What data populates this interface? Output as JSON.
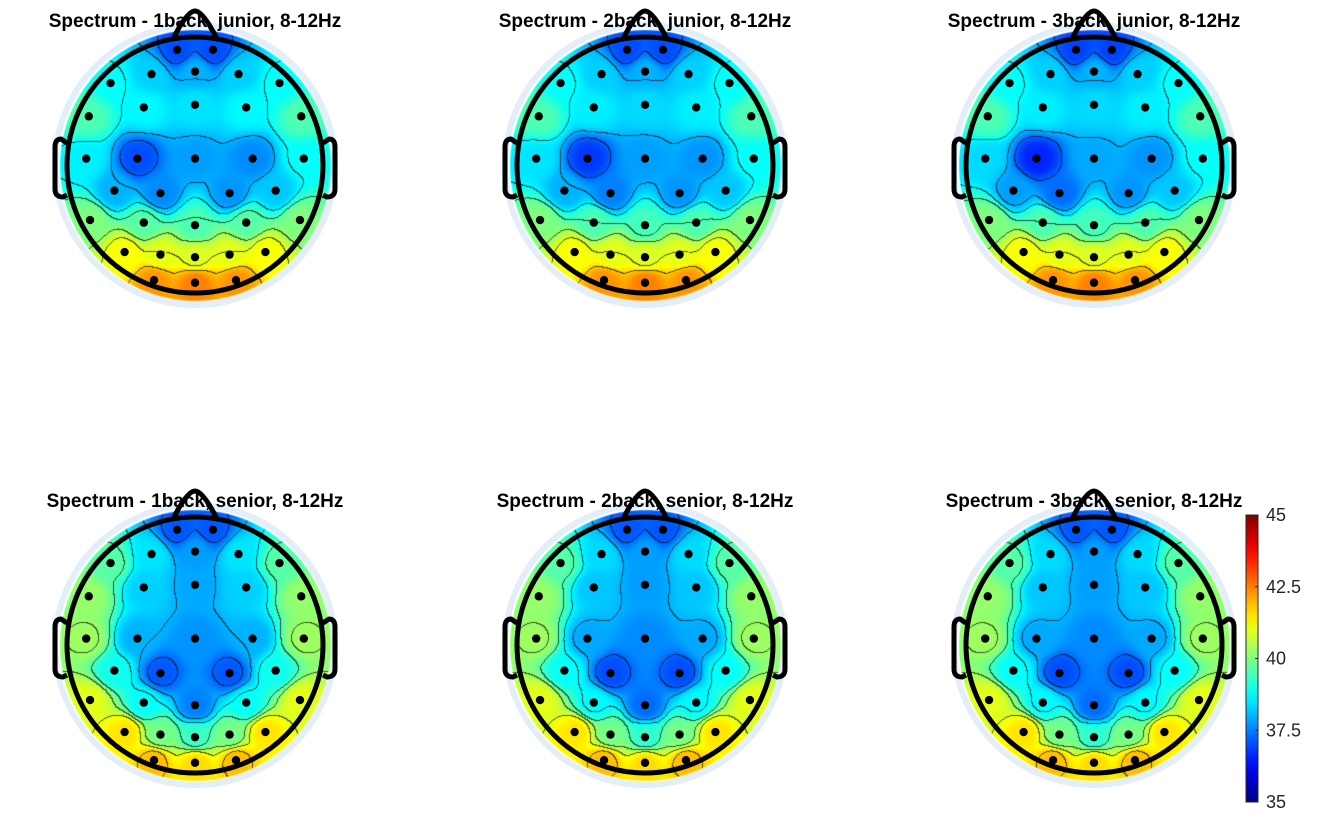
{
  "chart_data": {
    "type": "heatmap",
    "subtype": "eeg-topoplot",
    "colormap": "jet",
    "clim": [
      35,
      45
    ],
    "colorbar": {
      "ticks": [
        35,
        37.5,
        40,
        42.5,
        45
      ],
      "labels": [
        "35",
        "37.5",
        "40",
        "42.5",
        "45"
      ],
      "placement": "right"
    },
    "electrodes": [
      [
        -0.14,
        -0.9
      ],
      [
        0.14,
        -0.9
      ],
      [
        -0.66,
        -0.64
      ],
      [
        -0.34,
        -0.71
      ],
      [
        0,
        -0.73
      ],
      [
        0.34,
        -0.71
      ],
      [
        0.66,
        -0.64
      ],
      [
        -0.83,
        -0.38
      ],
      [
        -0.4,
        -0.45
      ],
      [
        0,
        -0.47
      ],
      [
        0.4,
        -0.45
      ],
      [
        0.83,
        -0.38
      ],
      [
        -0.85,
        -0.05
      ],
      [
        -0.45,
        -0.05
      ],
      [
        0,
        -0.05
      ],
      [
        0.45,
        -0.05
      ],
      [
        0.85,
        -0.05
      ],
      [
        -0.63,
        0.2
      ],
      [
        -0.27,
        0.22
      ],
      [
        0.27,
        0.22
      ],
      [
        0.63,
        0.2
      ],
      [
        -0.82,
        0.43
      ],
      [
        -0.4,
        0.45
      ],
      [
        0,
        0.47
      ],
      [
        0.4,
        0.45
      ],
      [
        0.82,
        0.43
      ],
      [
        -0.55,
        0.68
      ],
      [
        -0.27,
        0.7
      ],
      [
        0,
        0.72
      ],
      [
        0.27,
        0.7
      ],
      [
        0.55,
        0.68
      ],
      [
        -0.32,
        0.9
      ],
      [
        0,
        0.92
      ],
      [
        0.32,
        0.9
      ]
    ],
    "panels": [
      {
        "title": "Spectrum - 1back, junior, 8-12Hz",
        "values": [
          37.0,
          37.0,
          38.8,
          38.3,
          38.0,
          38.3,
          38.8,
          39.5,
          38.7,
          38.5,
          38.7,
          39.5,
          38.6,
          37.0,
          37.8,
          37.6,
          38.8,
          38.0,
          37.6,
          37.7,
          38.2,
          40.0,
          39.6,
          39.5,
          39.6,
          40.0,
          41.2,
          41.0,
          40.9,
          41.0,
          41.2,
          42.3,
          42.5,
          42.3
        ]
      },
      {
        "title": "Spectrum - 2back, junior, 8-12Hz",
        "values": [
          37.0,
          37.0,
          38.8,
          38.3,
          38.0,
          38.3,
          38.8,
          39.5,
          38.6,
          38.4,
          38.6,
          39.5,
          38.5,
          36.8,
          37.8,
          37.7,
          38.8,
          38.0,
          37.5,
          37.7,
          38.2,
          40.0,
          39.5,
          39.4,
          39.5,
          40.0,
          41.2,
          41.0,
          40.9,
          41.0,
          41.2,
          42.3,
          42.5,
          42.3
        ]
      },
      {
        "title": "Spectrum - 3back, junior, 8-12Hz",
        "values": [
          36.9,
          36.9,
          38.8,
          38.3,
          38.0,
          38.3,
          38.8,
          39.5,
          38.6,
          38.4,
          38.6,
          39.5,
          38.4,
          36.6,
          37.9,
          37.7,
          38.8,
          37.8,
          37.3,
          37.7,
          38.2,
          40.0,
          39.5,
          39.4,
          39.5,
          40.0,
          41.2,
          41.0,
          40.9,
          41.0,
          41.2,
          42.3,
          42.5,
          42.3
        ]
      },
      {
        "title": "Spectrum - 1back, senior, 8-12Hz",
        "values": [
          37.1,
          37.1,
          39.6,
          38.5,
          37.8,
          38.5,
          39.6,
          40.2,
          38.3,
          37.9,
          38.3,
          40.2,
          40.3,
          38.0,
          37.7,
          38.0,
          40.3,
          38.9,
          37.1,
          37.1,
          38.9,
          41.0,
          38.8,
          37.5,
          38.8,
          41.0,
          41.5,
          39.9,
          39.3,
          39.9,
          41.5,
          41.9,
          41.6,
          41.9
        ]
      },
      {
        "title": "Spectrum - 2back, senior, 8-12Hz",
        "values": [
          37.1,
          37.1,
          39.6,
          38.4,
          37.8,
          38.4,
          39.6,
          40.2,
          38.2,
          37.8,
          38.2,
          40.2,
          40.3,
          37.9,
          37.6,
          37.9,
          40.3,
          38.8,
          37.0,
          37.0,
          38.8,
          41.0,
          38.7,
          37.3,
          38.7,
          41.0,
          41.5,
          39.9,
          39.2,
          39.9,
          41.5,
          41.9,
          41.6,
          41.9
        ]
      },
      {
        "title": "Spectrum - 3back, senior, 8-12Hz",
        "values": [
          37.1,
          37.1,
          39.6,
          38.4,
          37.8,
          38.4,
          39.6,
          40.2,
          38.2,
          37.8,
          38.2,
          40.2,
          40.3,
          37.9,
          37.6,
          37.9,
          40.3,
          38.8,
          37.0,
          37.0,
          38.8,
          41.0,
          38.7,
          37.3,
          38.7,
          41.0,
          41.5,
          39.9,
          39.2,
          39.9,
          41.5,
          41.9,
          41.6,
          41.9
        ]
      }
    ]
  }
}
